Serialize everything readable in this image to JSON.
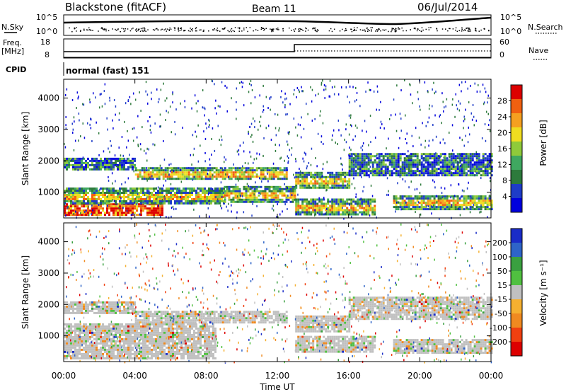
{
  "header": {
    "station": "Blackstone (fitACF)",
    "beam": "Beam 11",
    "date": "06/Jul/2014"
  },
  "params": {
    "nsky_label": "N.Sky",
    "nsearch_label": "N.Search",
    "freq_label_1": "Freq.",
    "freq_label_2": "[MHz]",
    "nave_label": "Nave",
    "cpid_label": "CPID",
    "cpid_value": "normal (fast) 151",
    "noise_ticks": [
      "10^5",
      "10^0"
    ],
    "freq_ticks": [
      "18",
      "8"
    ],
    "nave_ticks": [
      "60",
      "0"
    ]
  },
  "chart_data": [
    {
      "type": "heatmap",
      "name": "power",
      "ylabel": "Slant Range [km]",
      "ylim": [
        180,
        4600
      ],
      "yticks": [
        "4000",
        "3000",
        "2000",
        "1000"
      ],
      "colorbar": {
        "label": "Power [dB]",
        "ticks": [
          "28",
          "24",
          "20",
          "16",
          "12",
          "8",
          "4"
        ],
        "colors": [
          "#0000dd",
          "#1e3cc8",
          "#2d7a3c",
          "#3fa860",
          "#8fca3a",
          "#f0dd20",
          "#f5a020",
          "#f06010",
          "#dd0000"
        ]
      },
      "bands": [
        {
          "t": [
            0.0,
            5.5
          ],
          "r": [
            300,
            650
          ],
          "level": "high"
        },
        {
          "t": [
            0.0,
            9.0
          ],
          "r": [
            650,
            1150
          ],
          "level": "medium"
        },
        {
          "t": [
            0.0,
            4.0
          ],
          "r": [
            1700,
            2100
          ],
          "level": "low"
        },
        {
          "t": [
            4.0,
            12.5
          ],
          "r": [
            1400,
            1800
          ],
          "level": "medium"
        },
        {
          "t": [
            9.0,
            13.0
          ],
          "r": [
            700,
            1200
          ],
          "level": "medium"
        },
        {
          "t": [
            13.0,
            17.5
          ],
          "r": [
            300,
            800
          ],
          "level": "medium"
        },
        {
          "t": [
            13.0,
            16.0
          ],
          "r": [
            1150,
            1650
          ],
          "level": "medium"
        },
        {
          "t": [
            16.0,
            24.0
          ],
          "r": [
            1550,
            2250
          ],
          "level": "low"
        },
        {
          "t": [
            18.5,
            24.0
          ],
          "r": [
            450,
            900
          ],
          "level": "medium"
        }
      ]
    },
    {
      "type": "heatmap",
      "name": "velocity",
      "xlabel": "Time UT",
      "ylabel": "Slant Range [km]",
      "ylim": [
        180,
        4600
      ],
      "yticks": [
        "4000",
        "3000",
        "2000",
        "1000"
      ],
      "xticks": [
        "00:00",
        "04:00",
        "08:00",
        "12:00",
        "16:00",
        "20:00",
        "00:00"
      ],
      "colorbar": {
        "label": "Velocity [m s⁻¹]",
        "ticks": [
          "200",
          "100",
          "50",
          "15",
          "-15",
          "-50",
          "-100",
          "-200"
        ],
        "colors": [
          "#dd0000",
          "#f04010",
          "#f08a20",
          "#f5b030",
          "#c0c0c0",
          "#50c040",
          "#3aa040",
          "#2e64c8",
          "#1a2cc8"
        ]
      },
      "bands": [
        {
          "t": [
            0.0,
            8.5
          ],
          "r": [
            300,
            1400
          ],
          "level": "ground"
        },
        {
          "t": [
            0.0,
            4.0
          ],
          "r": [
            1700,
            2100
          ],
          "level": "ground"
        },
        {
          "t": [
            4.0,
            12.5
          ],
          "r": [
            1400,
            1800
          ],
          "level": "ground"
        },
        {
          "t": [
            13.0,
            17.5
          ],
          "r": [
            500,
            1000
          ],
          "level": "ground"
        },
        {
          "t": [
            13.0,
            16.0
          ],
          "r": [
            1150,
            1650
          ],
          "level": "ground"
        },
        {
          "t": [
            16.0,
            24.0
          ],
          "r": [
            1550,
            2250
          ],
          "level": "ground"
        },
        {
          "t": [
            18.5,
            24.0
          ],
          "r": [
            450,
            900
          ],
          "level": "ground"
        }
      ]
    }
  ]
}
